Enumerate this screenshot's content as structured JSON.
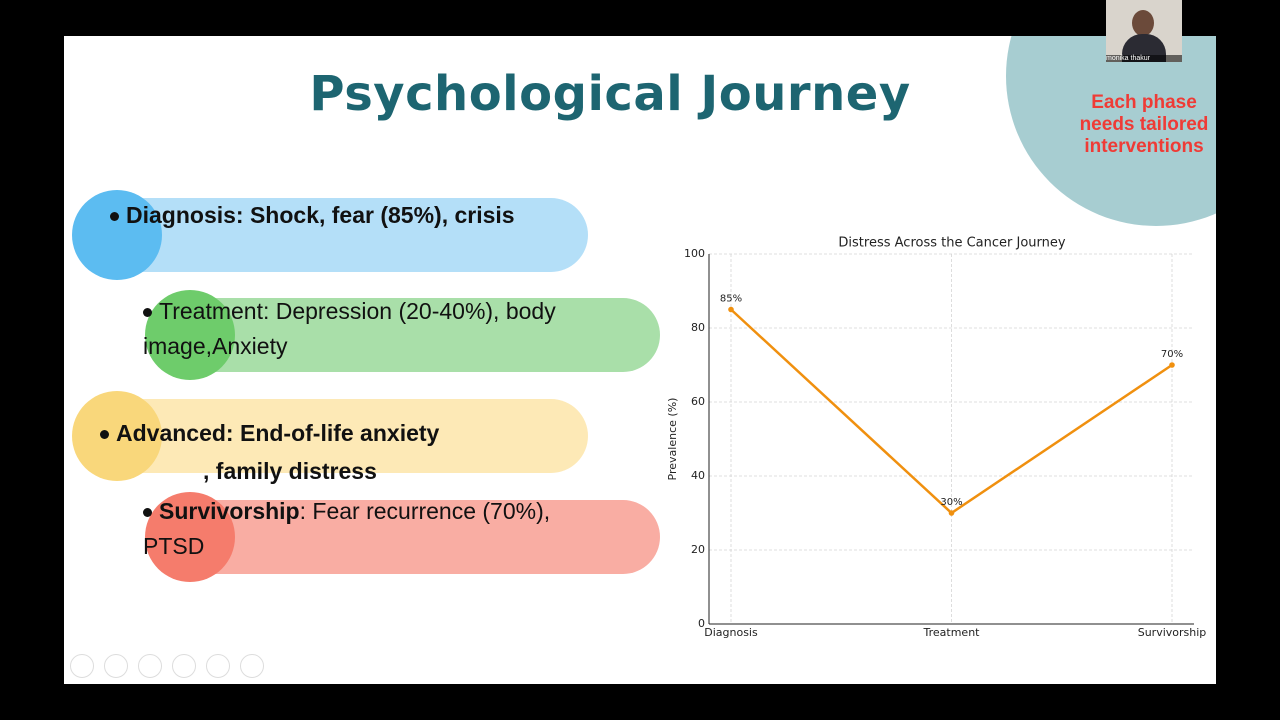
{
  "slide": {
    "title": "Psychological Journey",
    "callout": "Each phase needs tailored interventions",
    "participant": "monika thakur",
    "bullets": [
      "Diagnosis: Shock, fear (85%), crisis",
      "Treatment: Depression (20-40%), body image,Anxiety",
      [
        "Advanced: End-of-life anxiety",
        ", family distress"
      ],
      [
        "Survivorship",
        ": Fear recurrence (70%), PTSD"
      ]
    ]
  },
  "chart_data": {
    "type": "line",
    "title": "Distress Across the Cancer Journey",
    "y_label": "Prevalence (%)",
    "categories": [
      "Diagnosis",
      "Treatment",
      "Survivorship"
    ],
    "values": [
      85,
      30,
      70
    ],
    "value_labels": [
      "85%",
      "30%",
      "70%"
    ],
    "color": "#f0900f",
    "ylim": [
      0,
      100
    ],
    "yticks": [
      0,
      20,
      40,
      60,
      80,
      100
    ],
    "grid": true
  }
}
